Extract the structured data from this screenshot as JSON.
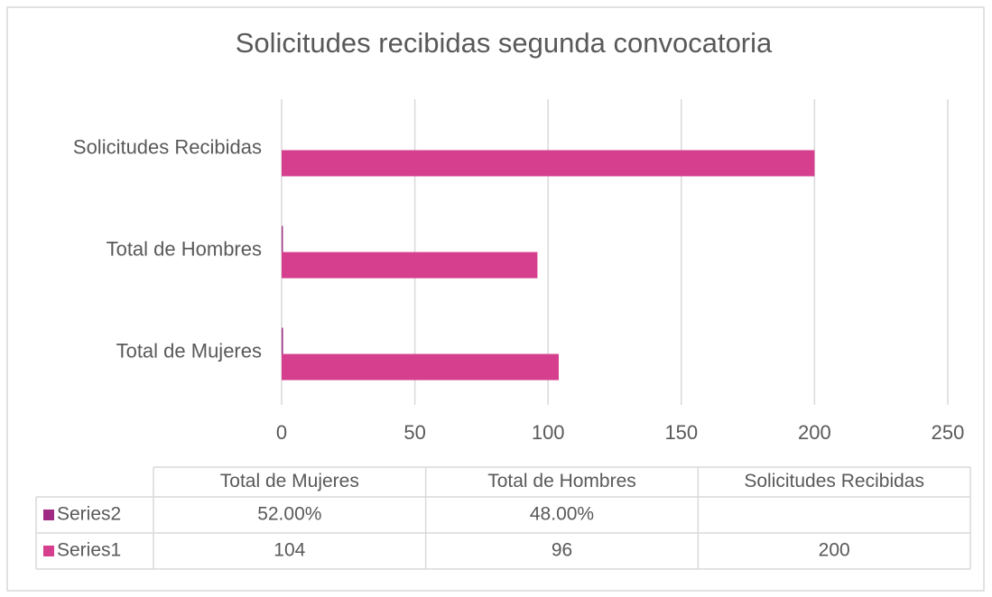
{
  "chart_data": {
    "type": "bar",
    "orientation": "horizontal",
    "title": "Solicitudes recibidas segunda convocatoria",
    "categories": [
      "Total de Mujeres",
      "Total de Hombres",
      "Solicitudes Recibidas"
    ],
    "series": [
      {
        "name": "Series1",
        "color": "#d63f8e",
        "values": [
          104,
          96,
          200
        ]
      },
      {
        "name": "Series2",
        "color": "#9e2a83",
        "values": [
          0.52,
          0.48,
          null
        ],
        "value_labels": [
          "52.00%",
          "48.00%",
          null
        ]
      }
    ],
    "xlim": [
      0,
      250
    ],
    "xticks": [
      0,
      50,
      100,
      150,
      200,
      250
    ],
    "grid": true,
    "data_table": true
  }
}
